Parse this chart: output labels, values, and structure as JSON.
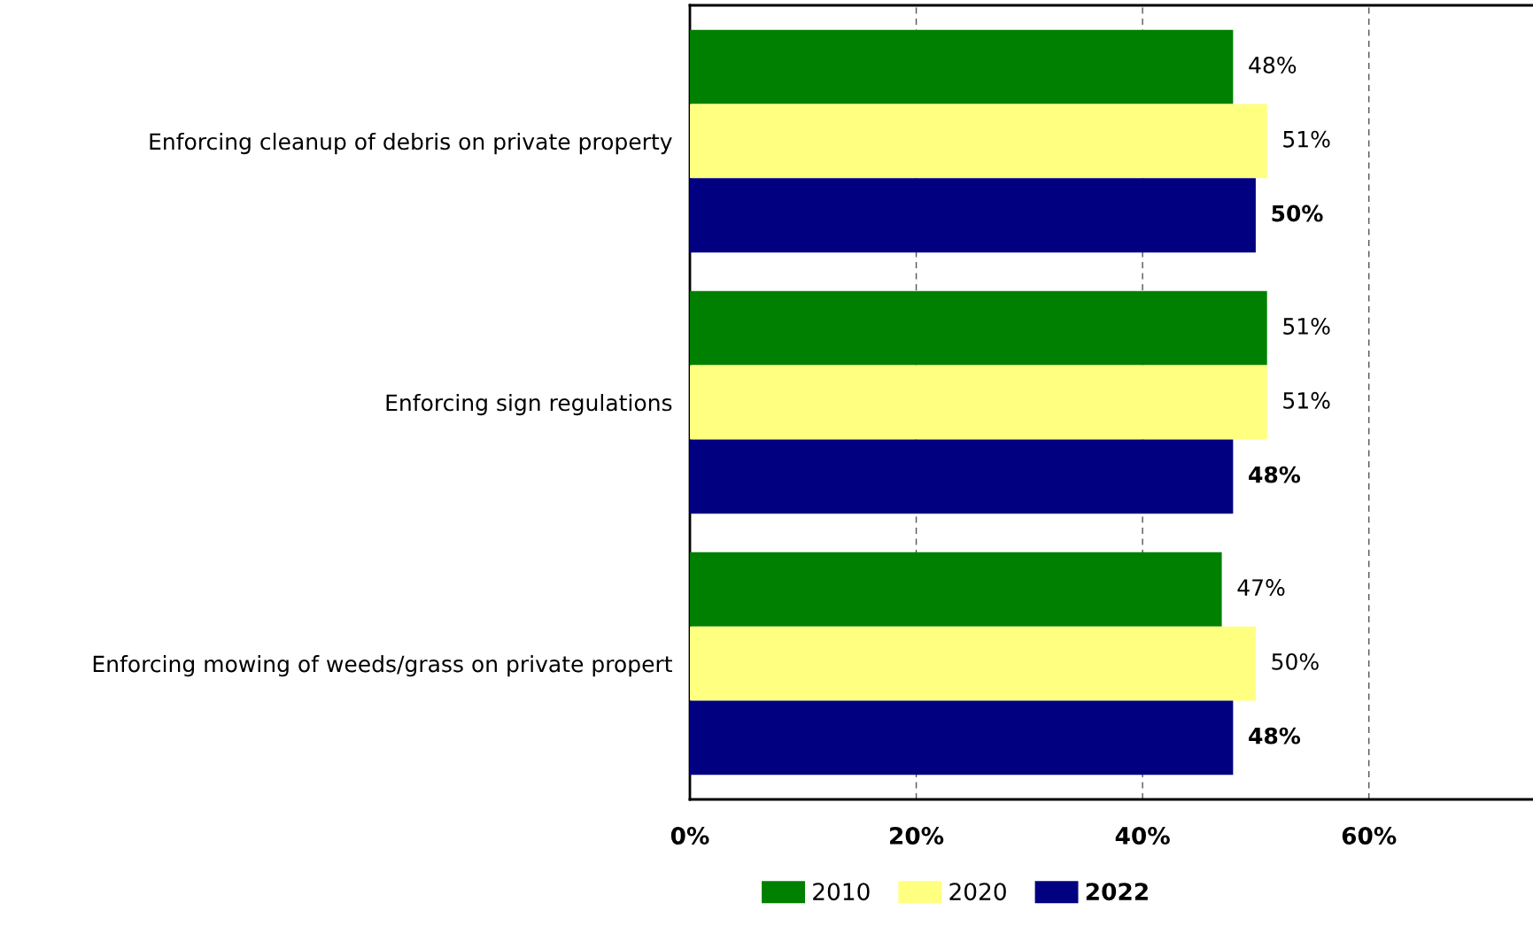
{
  "chart_data": {
    "type": "bar",
    "orientation": "horizontal",
    "categories": [
      "Enforcing cleanup of debris on private property",
      "Enforcing sign regulations",
      "Enforcing mowing of weeds/grass on private propert"
    ],
    "series": [
      {
        "name": "2010",
        "color": "#008000",
        "values": [
          48,
          51,
          47
        ],
        "value_labels": [
          "48%",
          "51%",
          "47%"
        ]
      },
      {
        "name": "2020",
        "color": "#ffff80",
        "values": [
          51,
          51,
          50
        ],
        "value_labels": [
          "51%",
          "51%",
          "50%"
        ]
      },
      {
        "name": "2022",
        "color": "#000080",
        "values": [
          50,
          48,
          48
        ],
        "value_labels": [
          "50%",
          "48%",
          "48%"
        ]
      }
    ],
    "xlim": [
      0,
      74.5
    ],
    "xticks": [
      {
        "value": 0,
        "label": "0%"
      },
      {
        "value": 20,
        "label": "20%"
      },
      {
        "value": 40,
        "label": "40%"
      },
      {
        "value": 60,
        "label": "60%"
      }
    ],
    "grid": "x",
    "legend": "bottom"
  }
}
